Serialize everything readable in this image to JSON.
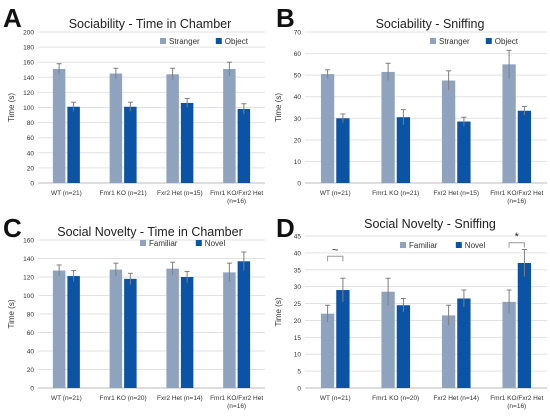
{
  "colors": {
    "light": "#8FA3BF",
    "dark": "#0B53A5",
    "axis": "#bdbdbd",
    "grid": "#e2e2e2",
    "err": "#7f7f7f",
    "text": "#333333",
    "bracket": "#999999"
  },
  "chart_data": [
    {
      "panel_letter": "A",
      "type": "bar",
      "title": "Sociability - Time in Chamber",
      "xlabel": "",
      "ylabel": "Time (s)",
      "ylim": [
        0,
        200
      ],
      "yticks": [
        0,
        20,
        40,
        60,
        80,
        100,
        120,
        140,
        160,
        180,
        200
      ],
      "categories": [
        "WT (n=21)",
        "Fmr1 KO (n=21)",
        "Fxr2 Het (n=15)",
        "Fmr1 KO/Fxr2 Het (n=16)"
      ],
      "series": [
        {
          "name": "Stranger",
          "color": "light",
          "values": [
            151,
            145,
            144,
            151
          ],
          "errors": [
            7,
            7,
            8,
            9
          ]
        },
        {
          "name": "Object",
          "color": "dark",
          "values": [
            101,
            101,
            106,
            98
          ],
          "errors": [
            6,
            6,
            6,
            7
          ]
        }
      ],
      "legend": "top-right",
      "annotations": []
    },
    {
      "panel_letter": "B",
      "type": "bar",
      "title": "Sociability - Sniffing",
      "xlabel": "",
      "ylabel": "Time (s)",
      "ylim": [
        0,
        70
      ],
      "yticks": [
        0,
        10,
        20,
        30,
        40,
        50,
        60,
        70
      ],
      "categories": [
        "WT (n=21)",
        "Fmr1 KO (n=21)",
        "Fxr2 Het (n=15)",
        "Fmr1 KO/Fxr2 Het (n=16)"
      ],
      "series": [
        {
          "name": "Stranger",
          "color": "light",
          "values": [
            50.5,
            51.5,
            47.5,
            55
          ],
          "errors": [
            2,
            4,
            4.5,
            6.5
          ]
        },
        {
          "name": "Object",
          "color": "dark",
          "values": [
            30,
            30.5,
            28.5,
            33.5
          ],
          "errors": [
            2,
            3.5,
            2,
            2
          ]
        }
      ],
      "legend": "top-right",
      "annotations": []
    },
    {
      "panel_letter": "C",
      "type": "bar",
      "title": "Social Novelty - Time in Chamber",
      "xlabel": "",
      "ylabel": "Time (s)",
      "ylim": [
        0,
        160
      ],
      "yticks": [
        0,
        20,
        40,
        60,
        80,
        100,
        120,
        140,
        160
      ],
      "categories": [
        "WT (n=21)",
        "Fmr1 KO (n=20)",
        "Fxr2 Het (n=14)",
        "Fmr1 KO/Fxr2 Het (n=16)"
      ],
      "series": [
        {
          "name": "Familiar",
          "color": "light",
          "values": [
            127,
            128,
            129,
            125
          ],
          "errors": [
            6,
            7,
            7,
            10
          ]
        },
        {
          "name": "Novel",
          "color": "dark",
          "values": [
            121,
            118,
            120,
            137
          ],
          "errors": [
            6,
            6,
            6,
            10
          ]
        }
      ],
      "legend": "top-left",
      "annotations": []
    },
    {
      "panel_letter": "D",
      "type": "bar",
      "title": "Social Novelty - Sniffing",
      "xlabel": "",
      "ylabel": "Time (s)",
      "ylim": [
        0,
        45
      ],
      "yticks": [
        0,
        5,
        10,
        15,
        20,
        25,
        30,
        35,
        40,
        45
      ],
      "categories": [
        "WT (n=21)",
        "Fmr1 KO (n=20)",
        "Fxr2 Het (n=14)",
        "Fmr1 KO/Fxr2 Het (n=16)"
      ],
      "series": [
        {
          "name": "Familiar",
          "color": "light",
          "values": [
            22,
            28.5,
            21.5,
            25.5
          ],
          "errors": [
            2.5,
            4,
            3,
            3.5
          ]
        },
        {
          "name": "Novel",
          "color": "dark",
          "values": [
            29,
            24.5,
            26.5,
            37
          ],
          "errors": [
            3.5,
            2,
            2.5,
            4
          ]
        }
      ],
      "legend": "top-center",
      "annotations": [
        {
          "category_index": 0,
          "label": "~",
          "bracket_y": 39
        },
        {
          "category_index": 3,
          "label": "*",
          "bracket_y": 43
        }
      ]
    }
  ]
}
